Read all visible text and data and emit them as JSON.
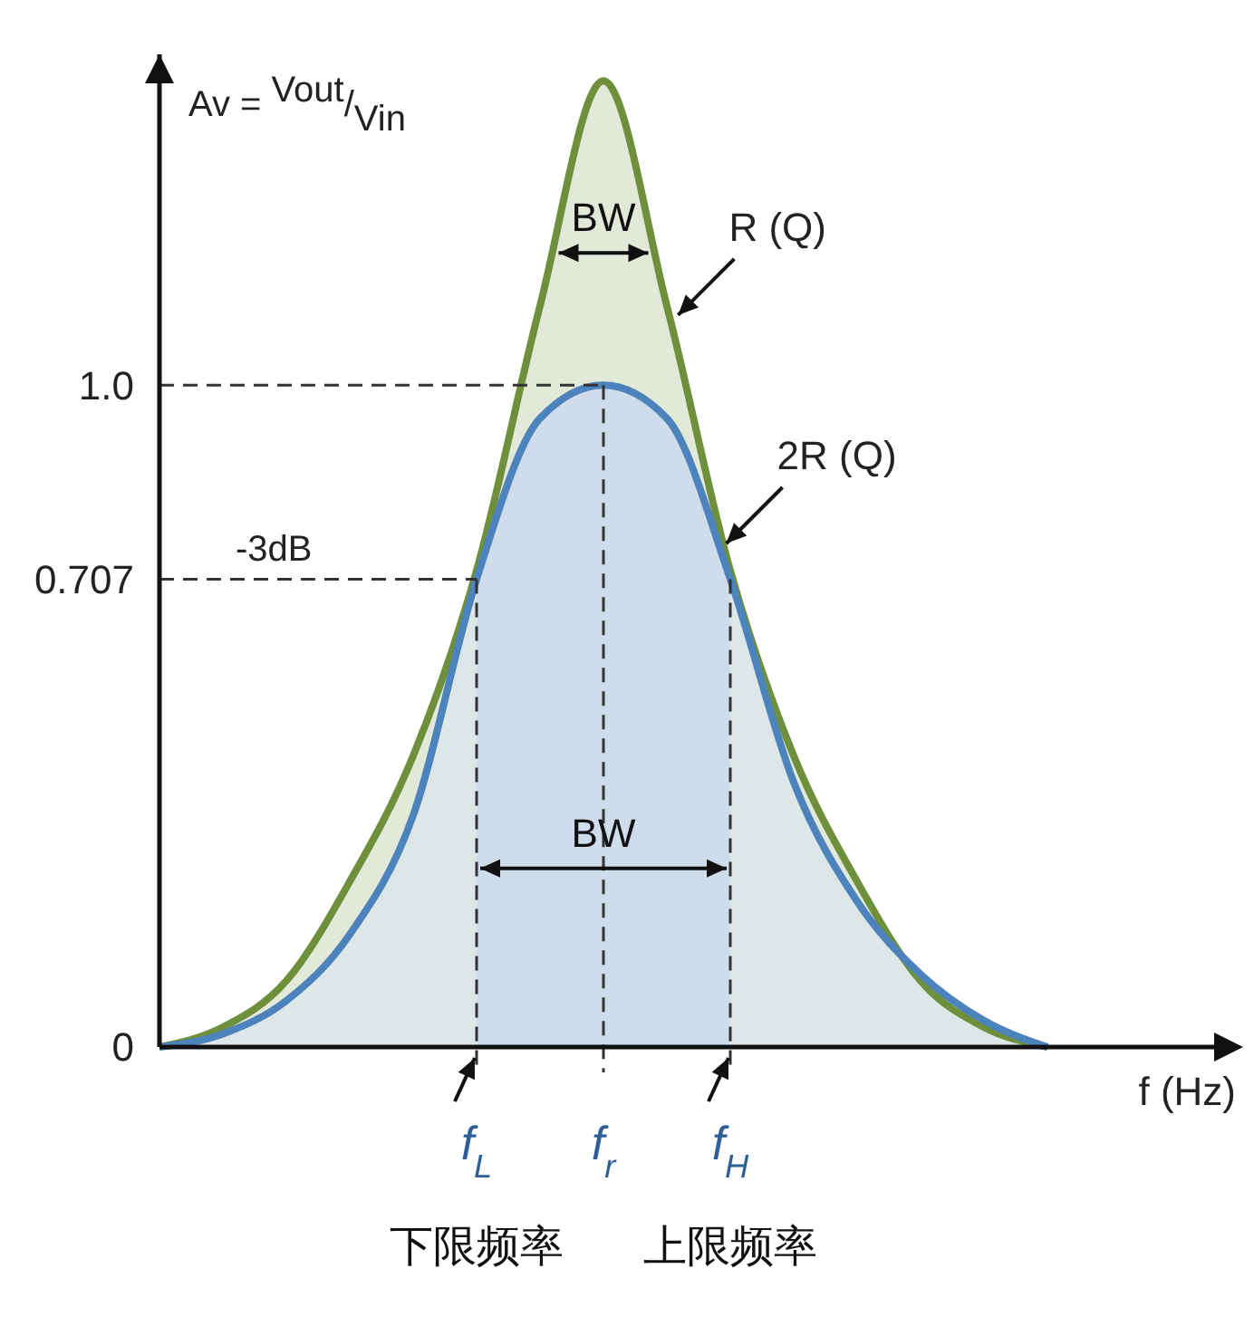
{
  "chart_data": {
    "type": "area",
    "xlabel": "f (Hz)",
    "ylabel": "Av = Vout/Vin",
    "ylim": [
      0,
      1.5
    ],
    "categories": [
      null,
      null,
      null,
      null,
      null,
      "f$_{L}$",
      null,
      "f$_{r}$",
      null,
      "f$_{H}$",
      null,
      null,
      null,
      null,
      null
    ],
    "yticks": [
      0,
      0.707,
      {
        "value": 1,
        "label": "1.0"
      }
    ],
    "grid": false,
    "marker": "none",
    "series": [
      {
        "name": "R (Q)",
        "color": "#6e8f3b",
        "values": [
          0,
          0.03,
          0.1,
          0.25,
          0.44,
          0.72,
          1.12,
          1.46,
          1.12,
          0.72,
          0.44,
          0.25,
          0.1,
          0.03,
          0
        ]
      },
      {
        "name": "2R (Q)",
        "color": "#4d83bd",
        "values": [
          0,
          0.02,
          0.07,
          0.17,
          0.35,
          0.707,
          0.95,
          1,
          0.95,
          0.707,
          0.4,
          0.22,
          0.11,
          0.04,
          0
        ]
      }
    ],
    "ref_lines": [
      {
        "axis": "y",
        "value": 1,
        "color": "#333333",
        "line_style": "dashed"
      },
      {
        "axis": "y",
        "value": 0.707,
        "label": "-3dB",
        "color": "#333333",
        "line_style": "dashed"
      },
      {
        "axis": "x",
        "value": "f$_{L}$",
        "color": "#333333",
        "line_style": "dashed"
      },
      {
        "axis": "x",
        "value": "f$_{r}$",
        "color": "#333333",
        "line_style": "dashed"
      },
      {
        "axis": "x",
        "value": "f$_{H}$",
        "color": "#333333",
        "line_style": "dashed"
      }
    ],
    "bands": [
      {
        "axis": "x",
        "from": "f$_{L}$",
        "to": "f$_{H}$",
        "color": "#bfcde0"
      }
    ],
    "annotations": [
      {
        "text": "BW",
        "x": "f$_{r}$",
        "y": 1.2
      },
      {
        "text": "BW",
        "x": "f$_{r}$",
        "y": 0.27
      },
      "下限频率",
      "上限频率"
    ]
  }
}
